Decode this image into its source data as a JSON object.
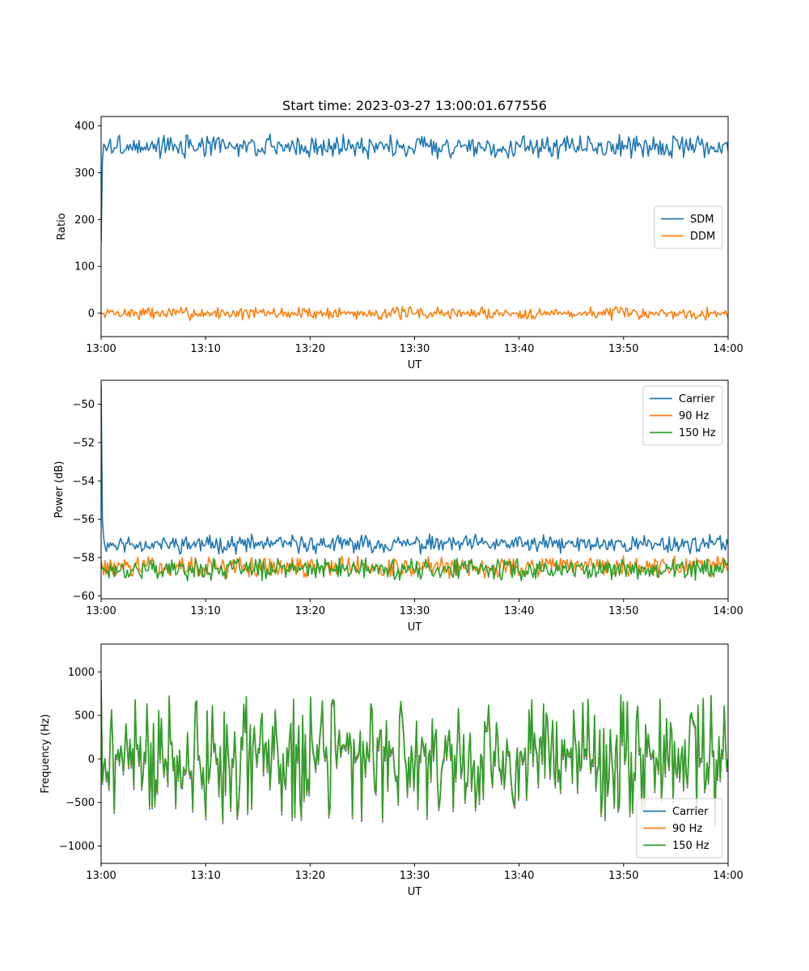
{
  "figure": {
    "title": "Start time: 2023-03-27 13:00:01.677556"
  },
  "chart_data": [
    {
      "type": "line",
      "xlabel": "UT",
      "ylabel": "Ratio",
      "xlim": [
        "13:00",
        "14:00"
      ],
      "ylim": [
        -50,
        420
      ],
      "xticks": [
        "13:00",
        "13:10",
        "13:20",
        "13:30",
        "13:40",
        "13:50",
        "14:00"
      ],
      "yticks": [
        0,
        100,
        200,
        300,
        400
      ],
      "ytick_labels": [
        "0",
        "100",
        "200",
        "300",
        "400"
      ],
      "legend": "center-right",
      "grid": false,
      "sample_count": 480,
      "series": [
        {
          "name": "SDM",
          "color": "#1f77b4",
          "start": 150,
          "mean": 356,
          "amplitude": 16,
          "noise": 12,
          "seed": 3
        },
        {
          "name": "DDM",
          "color": "#ff7f0e",
          "start": 0,
          "mean": 0,
          "amplitude": 8,
          "noise": 8,
          "seed": 7
        }
      ]
    },
    {
      "type": "line",
      "xlabel": "UT",
      "ylabel": "Power (dB)",
      "xlim": [
        "13:00",
        "14:00"
      ],
      "ylim": [
        -60.15,
        -48.75
      ],
      "xticks": [
        "13:00",
        "13:10",
        "13:20",
        "13:30",
        "13:40",
        "13:50",
        "14:00"
      ],
      "yticks": [
        -60,
        -58,
        -56,
        -54,
        -52,
        -50
      ],
      "ytick_labels": [
        "−60",
        "−58",
        "−56",
        "−54",
        "−52",
        "−50"
      ],
      "legend": "top-right",
      "grid": false,
      "sample_count": 480,
      "series": [
        {
          "name": "Carrier",
          "color": "#1f77b4",
          "start": -49,
          "mean": -57.3,
          "amplitude": 0.3,
          "noise": 0.25,
          "seed": 11
        },
        {
          "name": "90 Hz",
          "color": "#ff7f0e",
          "start": -58.2,
          "mean": -58.5,
          "amplitude": 0.35,
          "noise": 0.3,
          "seed": 13
        },
        {
          "name": "150 Hz",
          "color": "#2ca02c",
          "start": -58.4,
          "mean": -58.6,
          "amplitude": 0.35,
          "noise": 0.3,
          "seed": 17
        }
      ]
    },
    {
      "type": "line",
      "xlabel": "UT",
      "ylabel": "Frequency (Hz)",
      "xlim": [
        "13:00",
        "14:00"
      ],
      "ylim": [
        -1200,
        1320
      ],
      "xticks": [
        "13:00",
        "13:10",
        "13:20",
        "13:30",
        "13:40",
        "13:50",
        "14:00"
      ],
      "yticks": [
        -1000,
        -500,
        0,
        500,
        1000
      ],
      "ytick_labels": [
        "−1000",
        "−500",
        "0",
        "500",
        "1000"
      ],
      "legend": "bottom-right",
      "grid": false,
      "sample_count": 480,
      "series": [
        {
          "name": "Carrier",
          "color": "#1f77b4",
          "start": 900,
          "mean": 0,
          "amplitude": 420,
          "noise": 60,
          "seed": 21
        },
        {
          "name": "90 Hz",
          "color": "#ff7f0e",
          "start": 900,
          "mean": 20,
          "amplitude": 420,
          "noise": 60,
          "seed": 21
        },
        {
          "name": "150 Hz",
          "color": "#2ca02c",
          "start": 900,
          "mean": 35,
          "amplitude": 420,
          "noise": 60,
          "seed": 21
        }
      ]
    }
  ]
}
